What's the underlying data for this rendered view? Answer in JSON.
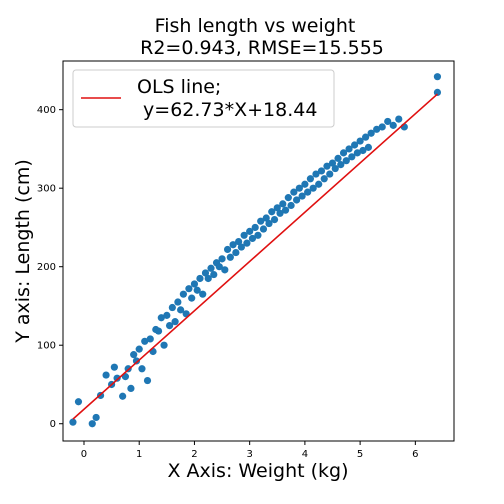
{
  "chart_data": {
    "type": "scatter",
    "title_line1": "Fish length vs weight",
    "title_line2": "R2=0.943, RMSE=15.555",
    "xlabel": "X Axis: Weight (kg)",
    "ylabel": "Y axis: Length (cm)",
    "xlim": [
      -0.38,
      6.7
    ],
    "ylim": [
      -22,
      462
    ],
    "xticks": [
      0,
      1,
      2,
      3,
      4,
      5,
      6
    ],
    "yticks": [
      0,
      100,
      200,
      300,
      400
    ],
    "grid": false,
    "legend_position": "top-left",
    "legend": {
      "line1": "OLS line;",
      "line2": " y=62.73*X+18.44"
    },
    "regression": {
      "slope": 62.73,
      "intercept": 18.44,
      "x_range": [
        -0.2,
        6.4
      ],
      "color": "#e01010"
    },
    "scatter_color": "#1f77b4",
    "points_x": [
      -0.2,
      -0.1,
      0.15,
      0.22,
      0.3,
      0.4,
      0.5,
      0.55,
      0.6,
      0.7,
      0.75,
      0.8,
      0.85,
      0.9,
      0.95,
      1.0,
      1.05,
      1.1,
      1.15,
      1.2,
      1.25,
      1.3,
      1.35,
      1.4,
      1.45,
      1.5,
      1.55,
      1.6,
      1.65,
      1.7,
      1.75,
      1.8,
      1.85,
      1.9,
      1.95,
      2.0,
      2.05,
      2.1,
      2.15,
      2.2,
      2.25,
      2.3,
      2.35,
      2.4,
      2.45,
      2.5,
      2.55,
      2.6,
      2.65,
      2.7,
      2.75,
      2.8,
      2.85,
      2.9,
      2.95,
      3.0,
      3.05,
      3.1,
      3.15,
      3.2,
      3.25,
      3.3,
      3.35,
      3.4,
      3.45,
      3.5,
      3.55,
      3.6,
      3.65,
      3.7,
      3.75,
      3.8,
      3.85,
      3.9,
      3.95,
      4.0,
      4.05,
      4.1,
      4.15,
      4.2,
      4.25,
      4.3,
      4.35,
      4.4,
      4.45,
      4.5,
      4.55,
      4.6,
      4.65,
      4.7,
      4.75,
      4.8,
      4.85,
      4.9,
      4.95,
      5.0,
      5.05,
      5.1,
      5.15,
      5.2,
      5.3,
      5.4,
      5.5,
      5.6,
      5.7,
      5.8,
      6.4,
      6.4
    ],
    "points_y": [
      2,
      28,
      0,
      8,
      36,
      62,
      50,
      72,
      58,
      35,
      60,
      70,
      45,
      88,
      80,
      95,
      70,
      105,
      55,
      108,
      92,
      120,
      118,
      135,
      100,
      138,
      125,
      148,
      130,
      155,
      145,
      165,
      140,
      172,
      160,
      178,
      170,
      185,
      165,
      192,
      185,
      198,
      190,
      205,
      200,
      210,
      196,
      222,
      212,
      228,
      218,
      232,
      225,
      240,
      230,
      245,
      236,
      250,
      240,
      258,
      248,
      262,
      255,
      270,
      260,
      275,
      268,
      280,
      272,
      288,
      278,
      295,
      285,
      300,
      290,
      305,
      295,
      312,
      300,
      318,
      305,
      322,
      312,
      328,
      318,
      332,
      325,
      338,
      330,
      345,
      335,
      350,
      340,
      355,
      345,
      360,
      348,
      365,
      352,
      370,
      375,
      378,
      385,
      380,
      388,
      378,
      442,
      422
    ]
  }
}
